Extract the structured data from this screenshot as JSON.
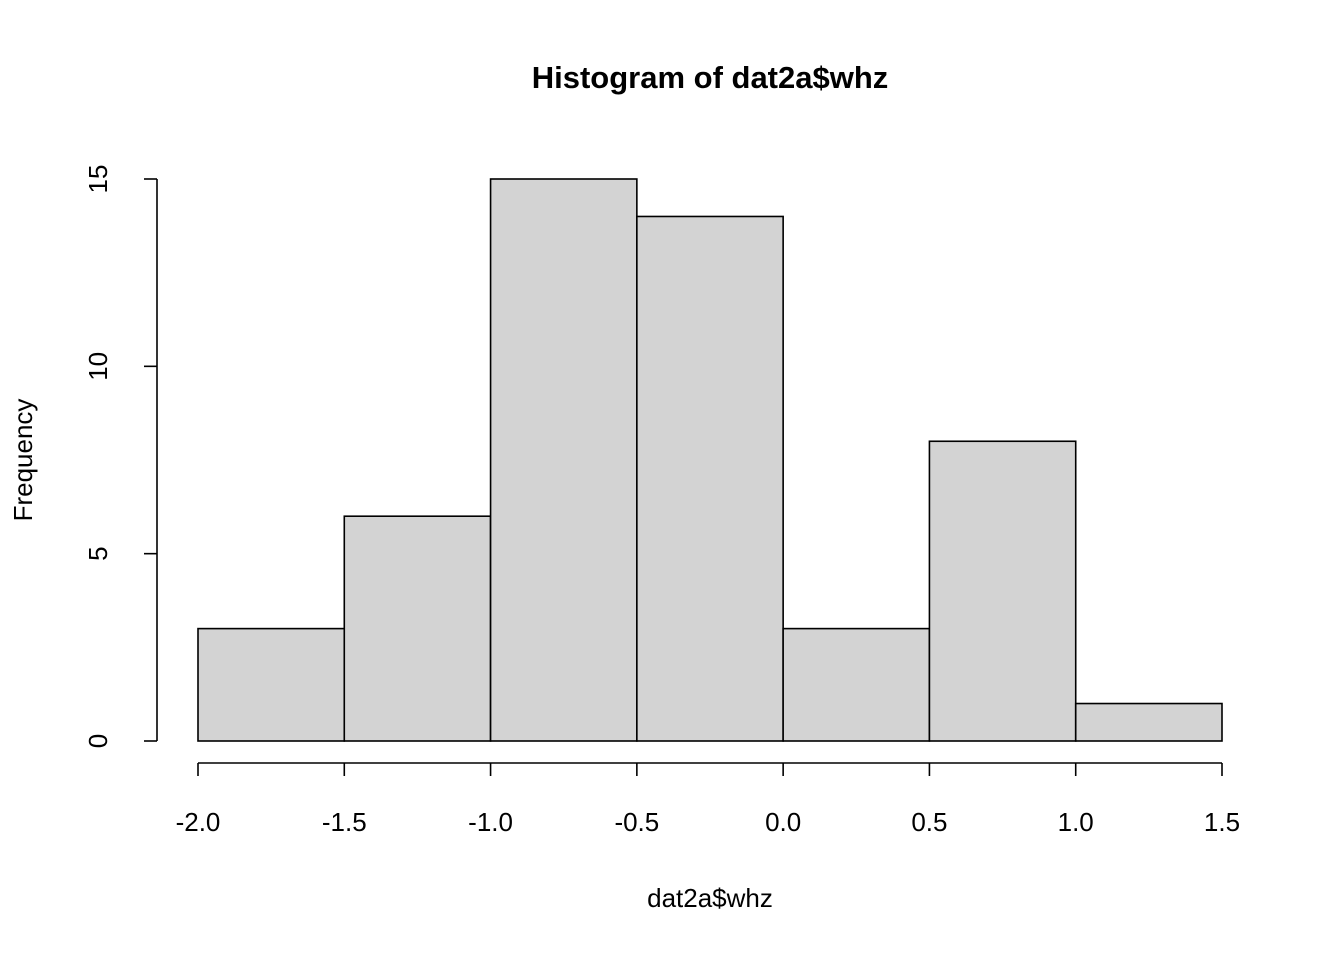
{
  "chart_data": {
    "type": "histogram",
    "title": "Histogram of dat2a$whz",
    "xlabel": "dat2a$whz",
    "ylabel": "Frequency",
    "bins": [
      -2,
      -1.5,
      -1,
      -0.5,
      0,
      0.5,
      1,
      1.5
    ],
    "values": [
      3,
      6,
      15,
      14,
      3,
      8,
      1
    ],
    "color": "#d3d3d3",
    "edgecolor": "#000000",
    "xlim": [
      -2,
      1.5
    ],
    "ylim": [
      0,
      15
    ],
    "xticks": [
      {
        "value": -2,
        "label": "-2.0"
      },
      -1.5,
      {
        "value": -1,
        "label": "-1.0"
      },
      -0.5,
      {
        "value": 0,
        "label": "0.0"
      },
      0.5,
      {
        "value": 1,
        "label": "1.0"
      },
      1.5
    ],
    "yticks": [
      0,
      5,
      10,
      15
    ],
    "grid": false
  }
}
